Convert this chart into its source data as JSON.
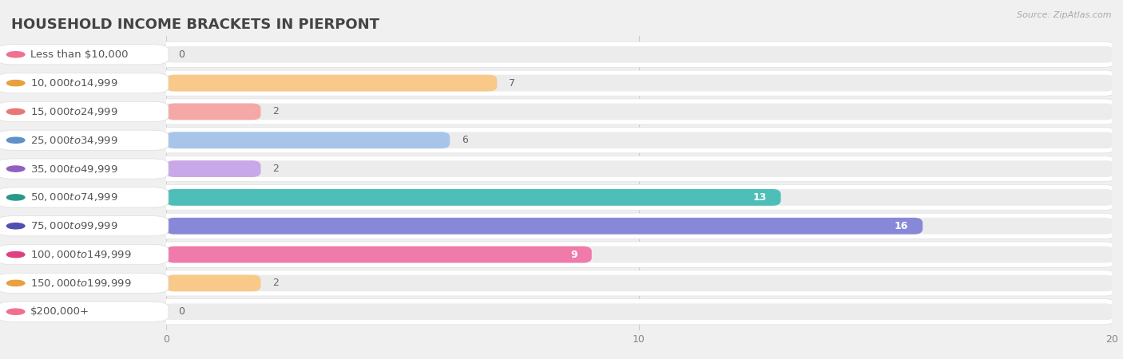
{
  "title": "HOUSEHOLD INCOME BRACKETS IN PIERPONT",
  "source": "Source: ZipAtlas.com",
  "categories": [
    "Less than $10,000",
    "$10,000 to $14,999",
    "$15,000 to $24,999",
    "$25,000 to $34,999",
    "$35,000 to $49,999",
    "$50,000 to $74,999",
    "$75,000 to $99,999",
    "$100,000 to $149,999",
    "$150,000 to $199,999",
    "$200,000+"
  ],
  "values": [
    0,
    7,
    2,
    6,
    2,
    13,
    16,
    9,
    2,
    0
  ],
  "bar_colors": [
    "#f5aabf",
    "#f9c98a",
    "#f5a8a8",
    "#a8c4e8",
    "#c8a8e8",
    "#4dbfb8",
    "#8888d8",
    "#f07aaa",
    "#f9c98a",
    "#f5aabf"
  ],
  "label_dot_colors": [
    "#f07090",
    "#e8a040",
    "#e87878",
    "#6090c8",
    "#9060c0",
    "#289888",
    "#5050b0",
    "#e04080",
    "#e8a040",
    "#f07090"
  ],
  "xlim": [
    0,
    20
  ],
  "xticks": [
    0,
    10,
    20
  ],
  "background_color": "#f0f0f0",
  "row_bg_color": "#ffffff",
  "bar_track_color": "#e8e8e8",
  "title_fontsize": 13,
  "label_fontsize": 9.5,
  "value_fontsize": 9,
  "value_color_inside": "#ffffff",
  "value_color_outside": "#666666"
}
